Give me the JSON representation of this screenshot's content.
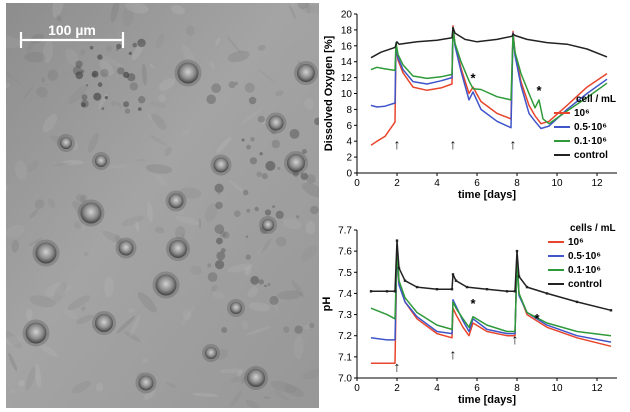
{
  "scale_bar": {
    "label": "100 µm"
  },
  "colors": {
    "1e6": "#e8452c",
    "0.5e6": "#3f55c9",
    "0.1e6": "#2f9a3a",
    "control": "#222222",
    "micrograph_bg": "#9a9a9a"
  },
  "chart_data": [
    {
      "type": "line",
      "ylabel": "Dissolved Oxygen [%]",
      "xlabel": "time [days]",
      "xlim": [
        0,
        13
      ],
      "ylim": [
        0,
        20
      ],
      "xticks": [
        0,
        2,
        4,
        6,
        8,
        10,
        12
      ],
      "yticks": [
        0,
        2,
        4,
        6,
        8,
        10,
        12,
        14,
        16,
        18,
        20
      ],
      "grid": false,
      "legend": {
        "title": "cell / mL",
        "placement": "right-middle"
      },
      "series": [
        {
          "name": "10⁶",
          "color_key": "1e6",
          "x": [
            0.7,
            1.0,
            1.4,
            1.9,
            1.95,
            2.05,
            2.3,
            2.8,
            3.5,
            4.2,
            4.75,
            4.8,
            4.9,
            5.2,
            5.6,
            5.8,
            6.2,
            7.0,
            7.7,
            7.8,
            7.9,
            8.2,
            8.6,
            8.9,
            9.2,
            9.6,
            10.5,
            11.5,
            12.5
          ],
          "y": [
            3.5,
            4.0,
            4.6,
            6.4,
            16.0,
            14.2,
            12.6,
            10.8,
            10.4,
            10.7,
            11.2,
            18.5,
            16.2,
            13.2,
            10.0,
            10.8,
            9.0,
            7.5,
            6.8,
            17.8,
            15.2,
            11.5,
            8.5,
            7.2,
            6.2,
            6.5,
            8.5,
            10.8,
            12.5
          ]
        },
        {
          "name": "0.5·10⁶",
          "color_key": "0.5e6",
          "x": [
            0.7,
            1.0,
            1.4,
            1.9,
            1.95,
            2.05,
            2.3,
            2.8,
            3.5,
            4.2,
            4.75,
            4.8,
            4.9,
            5.2,
            5.6,
            5.8,
            6.2,
            7.0,
            7.7,
            7.8,
            7.9,
            8.2,
            8.6,
            8.9,
            9.2,
            9.6,
            10.5,
            11.5,
            12.5
          ],
          "y": [
            8.5,
            8.3,
            8.4,
            8.8,
            16.2,
            14.5,
            13.0,
            11.5,
            11.2,
            11.6,
            12.0,
            18.3,
            16.0,
            12.8,
            9.2,
            10.2,
            8.0,
            6.5,
            5.7,
            17.6,
            14.8,
            11.0,
            7.5,
            6.5,
            5.6,
            5.9,
            8.0,
            10.0,
            11.8
          ]
        },
        {
          "name": "0.1·10⁶",
          "color_key": "0.1e6",
          "x": [
            0.7,
            1.0,
            1.4,
            1.9,
            1.95,
            2.05,
            2.3,
            2.8,
            3.5,
            4.2,
            4.75,
            4.8,
            4.9,
            5.2,
            5.6,
            5.8,
            6.2,
            7.0,
            7.7,
            7.8,
            7.9,
            8.2,
            8.6,
            8.9,
            9.1,
            9.3,
            9.6,
            10.5,
            11.5,
            12.5
          ],
          "y": [
            13.0,
            13.3,
            13.1,
            12.9,
            16.4,
            14.9,
            13.6,
            12.2,
            11.9,
            12.1,
            12.4,
            18.0,
            16.3,
            14.0,
            11.6,
            10.6,
            10.5,
            9.6,
            9.2,
            17.4,
            15.2,
            12.5,
            10.0,
            8.2,
            9.2,
            6.8,
            6.2,
            7.8,
            9.5,
            11.3
          ]
        },
        {
          "name": "control",
          "color_key": "control",
          "x": [
            0.7,
            1.2,
            1.9,
            2.0,
            2.1,
            3.0,
            4.0,
            4.75,
            4.8,
            4.9,
            5.4,
            6.0,
            7.0,
            7.75,
            7.8,
            7.9,
            8.5,
            9.5,
            10.5,
            11.5,
            12.5
          ],
          "y": [
            14.5,
            15.2,
            15.8,
            16.5,
            16.2,
            16.5,
            16.7,
            17.0,
            18.3,
            17.6,
            16.8,
            16.5,
            16.8,
            17.2,
            17.5,
            17.3,
            16.8,
            16.4,
            16.2,
            15.6,
            14.6
          ]
        }
      ],
      "annotations": [
        {
          "text": "↑",
          "x": 2.0,
          "y": 3.0
        },
        {
          "text": "↑",
          "x": 4.8,
          "y": 3.0
        },
        {
          "text": "↑",
          "x": 7.8,
          "y": 3.0
        },
        {
          "text": "*",
          "x": 5.8,
          "y": 11.4
        },
        {
          "text": "*",
          "x": 9.1,
          "y": 9.8
        }
      ]
    },
    {
      "type": "line",
      "ylabel": "pH",
      "xlabel": "time [days]",
      "xlim": [
        0,
        13
      ],
      "ylim": [
        7.0,
        7.7
      ],
      "xticks": [
        0,
        2,
        4,
        6,
        8,
        10,
        12
      ],
      "yticks": [
        7.0,
        7.1,
        7.2,
        7.3,
        7.4,
        7.5,
        7.6,
        7.7
      ],
      "grid": false,
      "legend": {
        "title": "cells / mL",
        "placement": "top-right"
      },
      "series": [
        {
          "name": "10⁶",
          "color_key": "1e6",
          "x": [
            0.7,
            1.5,
            1.9,
            2.0,
            2.1,
            2.4,
            3.0,
            4.0,
            4.75,
            4.8,
            4.95,
            5.3,
            5.6,
            5.8,
            6.5,
            7.5,
            7.9,
            8.0,
            8.1,
            8.5,
            9.5,
            11.0,
            12.7
          ],
          "y": [
            7.07,
            7.07,
            7.07,
            7.62,
            7.45,
            7.36,
            7.28,
            7.21,
            7.19,
            7.33,
            7.3,
            7.24,
            7.2,
            7.26,
            7.22,
            7.2,
            7.2,
            7.57,
            7.4,
            7.3,
            7.24,
            7.19,
            7.15
          ]
        },
        {
          "name": "0.5·10⁶",
          "color_key": "0.5e6",
          "x": [
            0.7,
            1.5,
            1.9,
            2.0,
            2.1,
            2.4,
            3.0,
            4.0,
            4.75,
            4.8,
            4.95,
            5.3,
            5.6,
            5.8,
            6.5,
            7.5,
            7.9,
            8.0,
            8.1,
            8.5,
            9.5,
            11.0,
            12.7
          ],
          "y": [
            7.19,
            7.18,
            7.18,
            7.6,
            7.44,
            7.36,
            7.29,
            7.22,
            7.21,
            7.37,
            7.34,
            7.27,
            7.22,
            7.28,
            7.23,
            7.21,
            7.21,
            7.56,
            7.39,
            7.31,
            7.25,
            7.2,
            7.17
          ]
        },
        {
          "name": "0.1·10⁶",
          "color_key": "0.1e6",
          "x": [
            0.7,
            1.5,
            1.9,
            2.0,
            2.1,
            2.4,
            3.0,
            4.0,
            4.75,
            4.8,
            4.95,
            5.3,
            5.6,
            5.8,
            6.5,
            7.5,
            7.9,
            8.0,
            8.1,
            8.5,
            9.5,
            11.0,
            12.7
          ],
          "y": [
            7.33,
            7.3,
            7.28,
            7.6,
            7.46,
            7.38,
            7.31,
            7.25,
            7.23,
            7.36,
            7.33,
            7.28,
            7.24,
            7.29,
            7.25,
            7.22,
            7.22,
            7.55,
            7.4,
            7.31,
            7.26,
            7.22,
            7.2
          ]
        },
        {
          "name": "control",
          "color_key": "control",
          "x": [
            0.7,
            1.5,
            1.9,
            2.0,
            2.1,
            2.4,
            3.0,
            4.0,
            4.75,
            4.8,
            4.95,
            5.5,
            6.5,
            7.5,
            7.9,
            8.0,
            8.1,
            8.5,
            9.5,
            11.0,
            12.7
          ],
          "y": [
            7.41,
            7.41,
            7.41,
            7.65,
            7.52,
            7.46,
            7.43,
            7.42,
            7.42,
            7.49,
            7.46,
            7.43,
            7.42,
            7.41,
            7.41,
            7.6,
            7.48,
            7.43,
            7.4,
            7.36,
            7.32
          ]
        }
      ],
      "annotations": [
        {
          "text": "↑",
          "x": 2.0,
          "y": 7.03
        },
        {
          "text": "↑",
          "x": 4.8,
          "y": 7.09
        },
        {
          "text": "↑",
          "x": 7.9,
          "y": 7.16
        },
        {
          "text": "*",
          "x": 5.8,
          "y": 7.33
        },
        {
          "text": "*",
          "x": 9.0,
          "y": 7.26
        }
      ]
    }
  ]
}
